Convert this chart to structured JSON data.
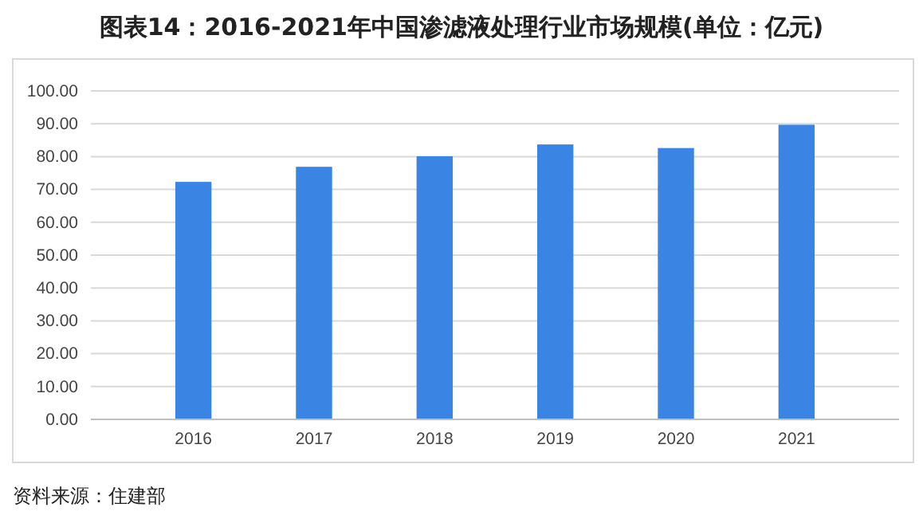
{
  "chart_data": {
    "type": "bar",
    "title": "图表14：2016-2021年中国渗滤液处理行业市场规模(单位：亿元)",
    "categories": [
      "2016",
      "2017",
      "2018",
      "2019",
      "2020",
      "2021"
    ],
    "values": [
      72.3,
      76.9,
      80.1,
      83.7,
      82.6,
      89.7
    ],
    "color": "#3a84e4",
    "ylim": [
      0,
      100
    ],
    "yticks": [
      {
        "value": 0,
        "label": "0.00"
      },
      {
        "value": 10,
        "label": "10.00"
      },
      {
        "value": 20,
        "label": "20.00"
      },
      {
        "value": 30,
        "label": "30.00"
      },
      {
        "value": 40,
        "label": "40.00"
      },
      {
        "value": 50,
        "label": "50.00"
      },
      {
        "value": 60,
        "label": "60.00"
      },
      {
        "value": 70,
        "label": "70.00"
      },
      {
        "value": 80,
        "label": "80.00"
      },
      {
        "value": 90,
        "label": "90.00"
      },
      {
        "value": 100,
        "label": "100.00"
      }
    ],
    "grid": "y",
    "annotations": [
      "资料来源：住建部"
    ]
  }
}
